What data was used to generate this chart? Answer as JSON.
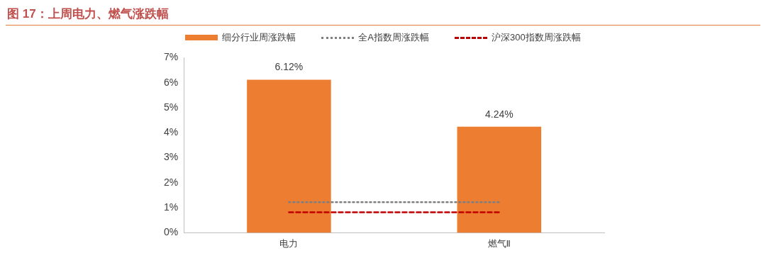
{
  "chart_data": {
    "type": "bar",
    "title": "图 17：上周电力、燃气涨跌幅",
    "categories": [
      "电力",
      "燃气Ⅱ"
    ],
    "series": [
      {
        "name": "细分行业周涨跌幅",
        "color": "#ed7d31",
        "values": [
          6.12,
          4.24
        ],
        "value_labels": [
          "6.12%",
          "4.24%"
        ]
      },
      {
        "name": "全A指数周涨跌幅",
        "type": "line",
        "color": "#7f7f7f",
        "values": [
          1.22,
          1.22
        ],
        "line_style": "dotted",
        "marker": "none"
      },
      {
        "name": "沪深300指数周涨跌幅",
        "type": "line",
        "color": "#c00000",
        "values": [
          0.82,
          0.82
        ],
        "line_style": "dashed",
        "marker": "none"
      }
    ],
    "ylim": [
      0,
      7
    ],
    "yticks": [
      {
        "value": 0,
        "label": "0%"
      },
      {
        "value": 1,
        "label": "1%"
      },
      {
        "value": 2,
        "label": "2%"
      },
      {
        "value": 3,
        "label": "3%"
      },
      {
        "value": 4,
        "label": "4%"
      },
      {
        "value": 5,
        "label": "5%"
      },
      {
        "value": 6,
        "label": "6%"
      },
      {
        "value": 7,
        "label": "7%"
      }
    ],
    "grid": false,
    "legend": "top"
  }
}
